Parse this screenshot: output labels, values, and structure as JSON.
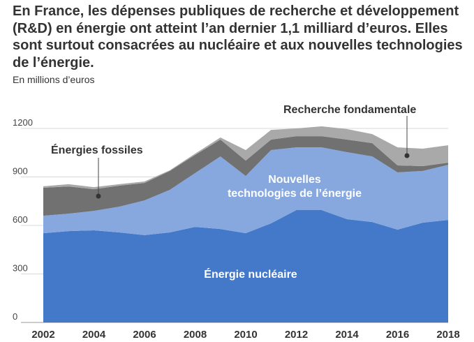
{
  "chart_data": {
    "type": "area",
    "stacked": true,
    "title": "En France, les dépenses publiques de recherche et développement (R&D) en énergie ont atteint l’an dernier 1,1 milliard d’euros. Elles sont surtout consacrées au nucléaire et aux nouvelles technologies de l’énergie.",
    "ylabel": "En millions d’euros",
    "xlabel": "",
    "ylim": [
      0,
      1200
    ],
    "yticks": [
      "0",
      "300",
      "600",
      "900",
      "1200"
    ],
    "ytick_values": [
      0,
      300,
      600,
      900,
      1200
    ],
    "xticks": [
      "2002",
      "2004",
      "2006",
      "2008",
      "2010",
      "2012",
      "2014",
      "2016",
      "2018"
    ],
    "grid": true,
    "x": [
      2002,
      2003,
      2004,
      2005,
      2006,
      2007,
      2008,
      2009,
      2010,
      2011,
      2012,
      2013,
      2014,
      2015,
      2016,
      2017,
      2018
    ],
    "series": [
      {
        "name": "Énergie nucléaire",
        "color": "#4478c8",
        "values": [
          552,
          565,
          570,
          557,
          540,
          557,
          591,
          578,
          552,
          613,
          695,
          695,
          639,
          621,
          574,
          617,
          634
        ]
      },
      {
        "name": "Nouvelles technologies de l’énergie",
        "color": "#86a8de",
        "values": [
          108,
          108,
          120,
          159,
          215,
          263,
          333,
          449,
          354,
          453,
          388,
          388,
          414,
          406,
          354,
          320,
          341
        ]
      },
      {
        "name": "Énergies fossiles",
        "color": "#717171",
        "values": [
          173,
          168,
          134,
          130,
          108,
          117,
          112,
          104,
          95,
          65,
          69,
          69,
          78,
          82,
          43,
          30,
          13
        ]
      },
      {
        "name": "Recherche fondamentale",
        "color": "#a9a9a9",
        "values": [
          9,
          14,
          13,
          9,
          9,
          4,
          8,
          13,
          65,
          60,
          48,
          61,
          65,
          56,
          112,
          108,
          108
        ]
      }
    ],
    "labels": {
      "nuclear": "Énergie nucléaire",
      "nte_line1": "Nouvelles",
      "nte_line2": "technologies de l’énergie",
      "fossil": "Énergies fossiles",
      "research": "Recherche fondamentale"
    }
  }
}
